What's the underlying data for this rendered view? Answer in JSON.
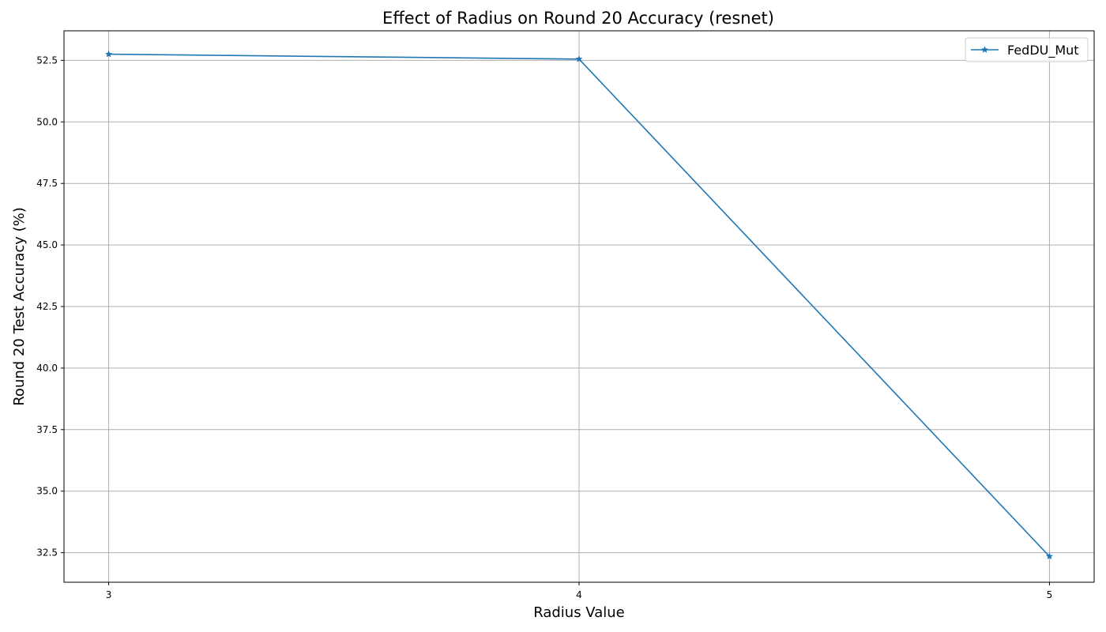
{
  "chart_data": {
    "type": "line",
    "title": "Effect of Radius on Round 20 Accuracy (resnet)",
    "xlabel": "Radius Value",
    "ylabel": "Round 20 Test Accuracy (%)",
    "x": [
      3,
      4,
      5
    ],
    "x_tick_labels": [
      "3",
      "4",
      "5"
    ],
    "xlim": [
      2.905,
      5.095
    ],
    "ylim": [
      31.3,
      53.7
    ],
    "y_ticks": [
      32.5,
      35.0,
      37.5,
      40.0,
      42.5,
      45.0,
      47.5,
      50.0,
      52.5
    ],
    "y_tick_labels": [
      "32.5",
      "35.0",
      "37.5",
      "40.0",
      "42.5",
      "45.0",
      "47.5",
      "50.0",
      "52.5"
    ],
    "grid": true,
    "legend_position": "top-right",
    "series": [
      {
        "name": "FedDU_Mut",
        "values": [
          52.75,
          52.55,
          32.35
        ],
        "color": "#1f77b4",
        "marker": "star"
      }
    ]
  }
}
